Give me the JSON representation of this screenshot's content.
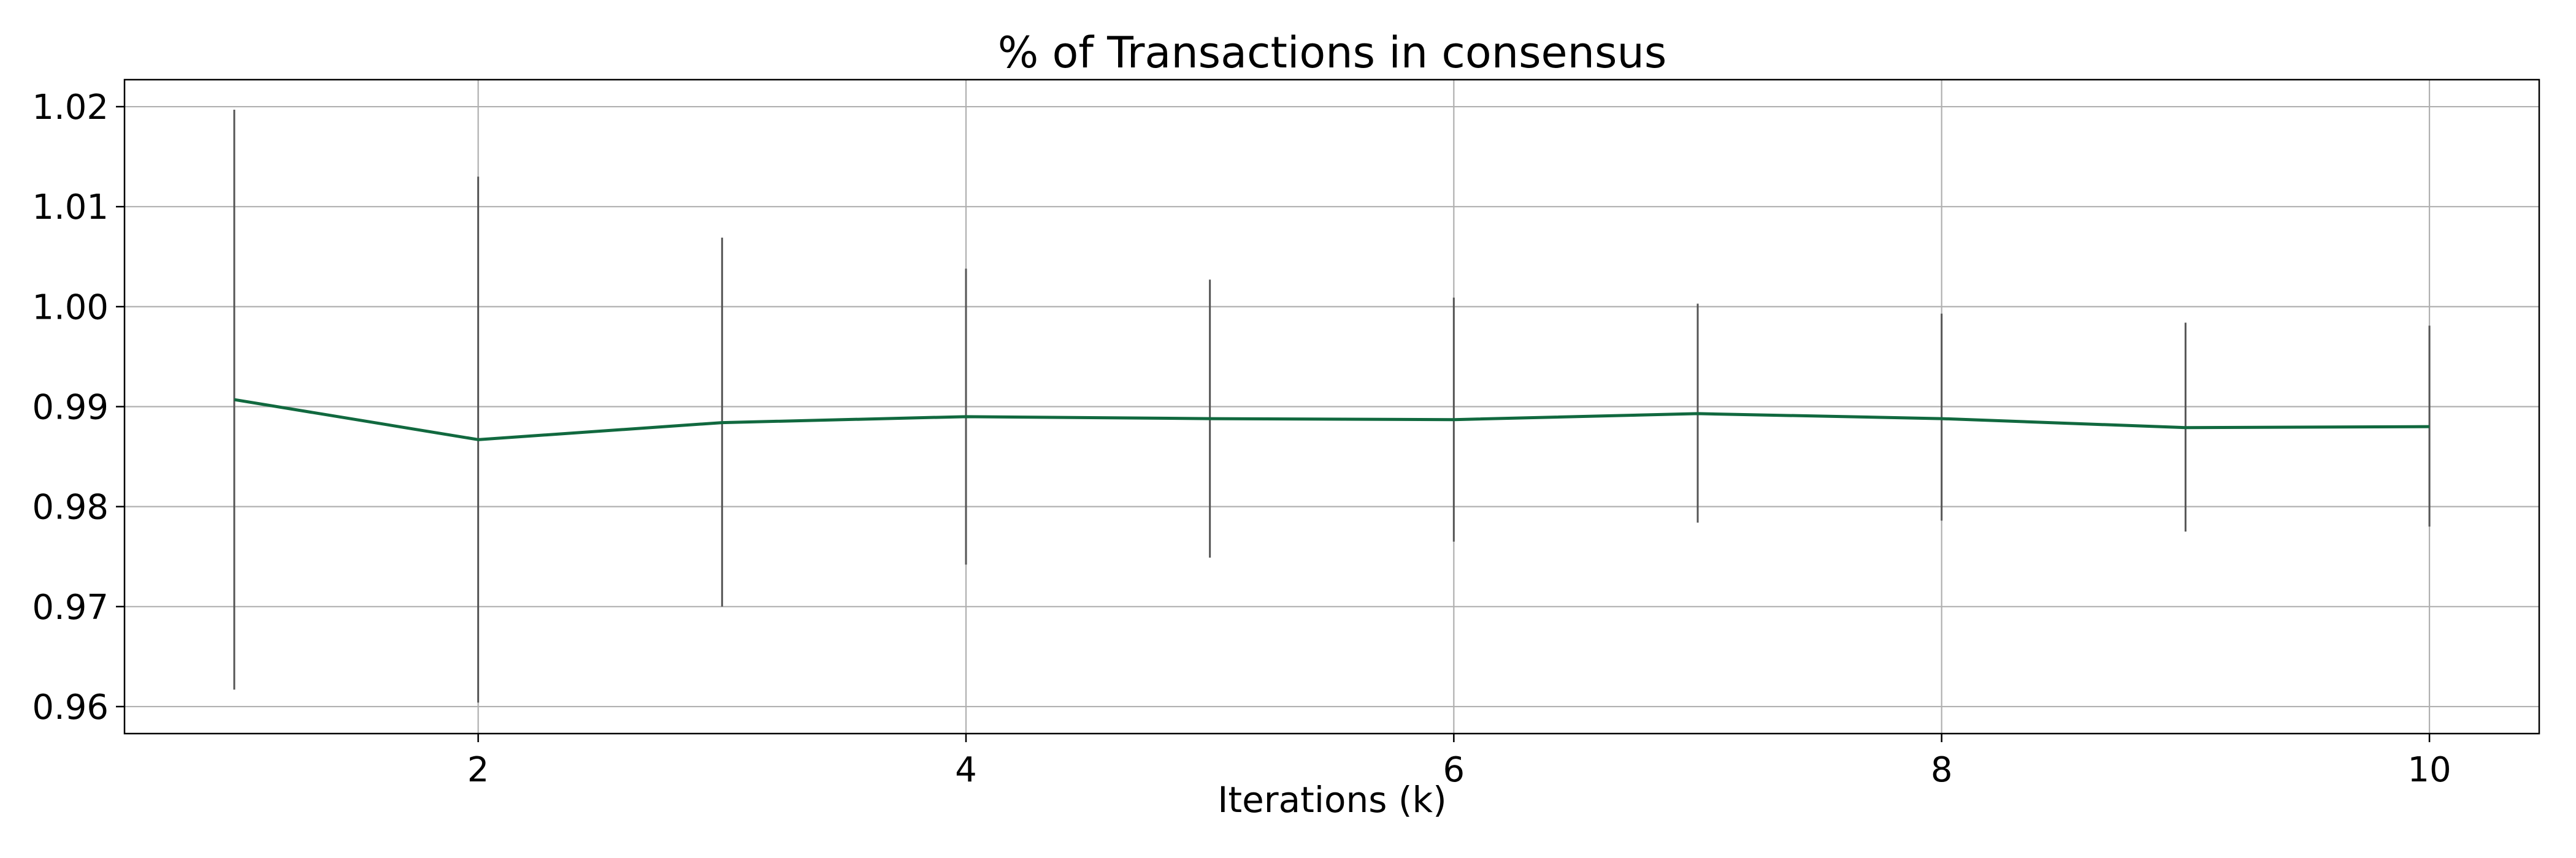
{
  "chart_data": {
    "type": "line",
    "title": "% of Transactions in consensus",
    "xlabel": "Iterations (k)",
    "ylabel": "",
    "x": [
      1,
      2,
      3,
      4,
      5,
      6,
      7,
      8,
      9,
      10
    ],
    "series": [
      {
        "values": [
          0.9907,
          0.9867,
          0.9884,
          0.989,
          0.9888,
          0.9887,
          0.9893,
          0.9888,
          0.9879,
          0.988
        ],
        "error_low": [
          0.9617,
          0.9604,
          0.97,
          0.9742,
          0.9749,
          0.9765,
          0.9784,
          0.9786,
          0.9775,
          0.978
        ],
        "error_high": [
          1.0197,
          1.013,
          1.0069,
          1.0038,
          1.0027,
          1.0009,
          1.0003,
          0.9993,
          0.9984,
          0.9981
        ],
        "color": "#11693f",
        "error_color": "#555555"
      }
    ],
    "xlim": [
      0.55,
      10.45
    ],
    "ylim": [
      0.9573,
      1.0227
    ],
    "xticks": [
      2,
      4,
      6,
      8,
      10
    ],
    "xtick_labels": [
      "2",
      "4",
      "6",
      "8",
      "10"
    ],
    "yticks": [
      0.96,
      0.97,
      0.98,
      0.99,
      1.0,
      1.01,
      1.02
    ],
    "ytick_labels": [
      "0.96",
      "0.97",
      "0.98",
      "0.99",
      "1.00",
      "1.01",
      "1.02"
    ],
    "grid": true,
    "legend": "none"
  }
}
